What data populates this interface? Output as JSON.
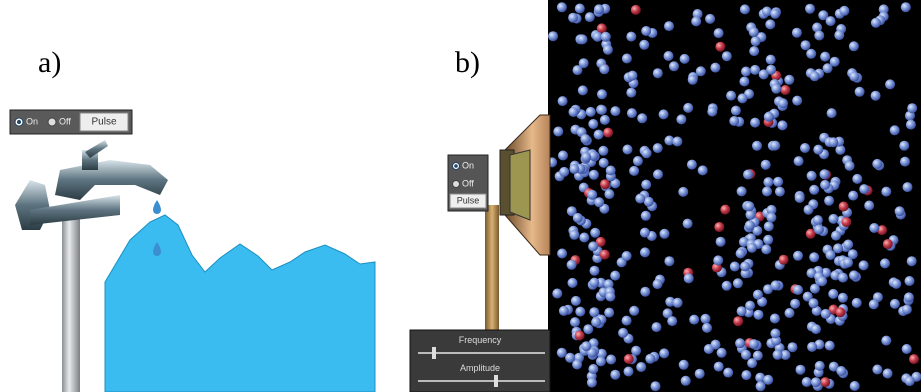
{
  "panel_a": {
    "label": "a)",
    "controls": {
      "on": "On",
      "off": "Off",
      "pulse": "Pulse"
    }
  },
  "panel_b": {
    "label": "b)",
    "controls": {
      "on": "On",
      "off": "Off",
      "pulse": "Pulse"
    },
    "sliders": {
      "frequency": "Frequency",
      "amplitude": "Amplitude"
    }
  }
}
